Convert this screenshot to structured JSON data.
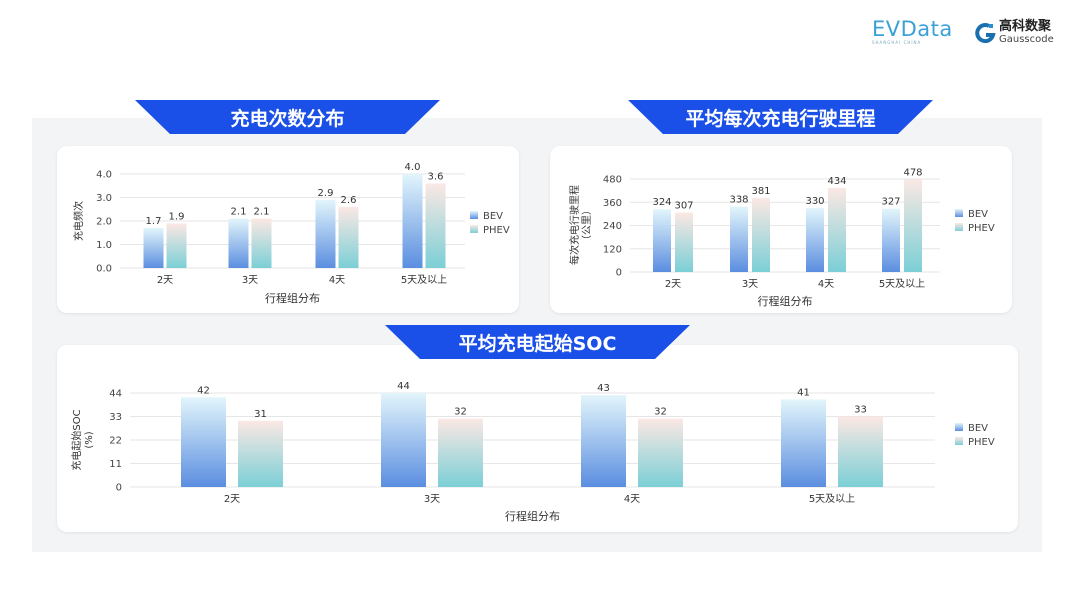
{
  "logos": {
    "evdata": "EVData",
    "evdata_sub": "SHANGHAI CHINA",
    "gauss_cn": "高科数聚",
    "gauss_en": "Gausscode"
  },
  "colors": {
    "banner": "#1a4fe8",
    "bev_top": "#e2f5fb",
    "bev_bottom": "#5b8ee0",
    "phev_top": "#fbe8e4",
    "phev_bottom": "#7bcfd6"
  },
  "banners": [
    "充电次数分布",
    "平均每次充电行驶里程",
    "平均充电起始SOC"
  ],
  "chart_data": [
    {
      "type": "bar",
      "title": "充电次数分布",
      "categories": [
        "2天",
        "3天",
        "4天",
        "5天及以上"
      ],
      "series": [
        {
          "name": "BEV",
          "values": [
            1.7,
            2.1,
            2.9,
            4.0
          ],
          "labels": [
            "1.7",
            "2.1",
            "2.9",
            "4.0"
          ]
        },
        {
          "name": "PHEV",
          "values": [
            1.9,
            2.1,
            2.6,
            3.6
          ],
          "labels": [
            "1.9",
            "2.1",
            "2.6",
            "3.6"
          ]
        }
      ],
      "xlabel": "行程组分布",
      "ylabel": "充电频次",
      "ylim": [
        0,
        4
      ],
      "yticks": [
        "0.0",
        "1.0",
        "2.0",
        "3.0",
        "4.0"
      ],
      "grid": true,
      "legend": "right"
    },
    {
      "type": "bar",
      "title": "平均每次充电行驶里程",
      "categories": [
        "2天",
        "3天",
        "4天",
        "5天及以上"
      ],
      "series": [
        {
          "name": "BEV",
          "values": [
            324,
            338,
            330,
            327
          ],
          "labels": [
            "324",
            "338",
            "330",
            "327"
          ]
        },
        {
          "name": "PHEV",
          "values": [
            307,
            381,
            434,
            478
          ],
          "labels": [
            "307",
            "381",
            "434",
            "478"
          ]
        }
      ],
      "xlabel": "行程组分布",
      "ylabel": "每次充电行驶里程",
      "ylabel2": "（公里）",
      "ylim": [
        0,
        480
      ],
      "yticks": [
        "0",
        "120",
        "240",
        "360",
        "480"
      ],
      "grid": true,
      "legend": "right"
    },
    {
      "type": "bar",
      "title": "平均充电起始SOC",
      "categories": [
        "2天",
        "3天",
        "4天",
        "5天及以上"
      ],
      "series": [
        {
          "name": "BEV",
          "values": [
            42,
            44,
            43,
            41
          ],
          "labels": [
            "42",
            "44",
            "43",
            "41"
          ]
        },
        {
          "name": "PHEV",
          "values": [
            31,
            32,
            32,
            33
          ],
          "labels": [
            "31",
            "32",
            "32",
            "33"
          ]
        }
      ],
      "xlabel": "行程组分布",
      "ylabel": "充电起始SOC",
      "ylabel2": "(%)",
      "ylim": [
        0,
        44
      ],
      "yticks": [
        "0",
        "11",
        "22",
        "33",
        "44"
      ],
      "grid": true,
      "legend": "right"
    }
  ]
}
